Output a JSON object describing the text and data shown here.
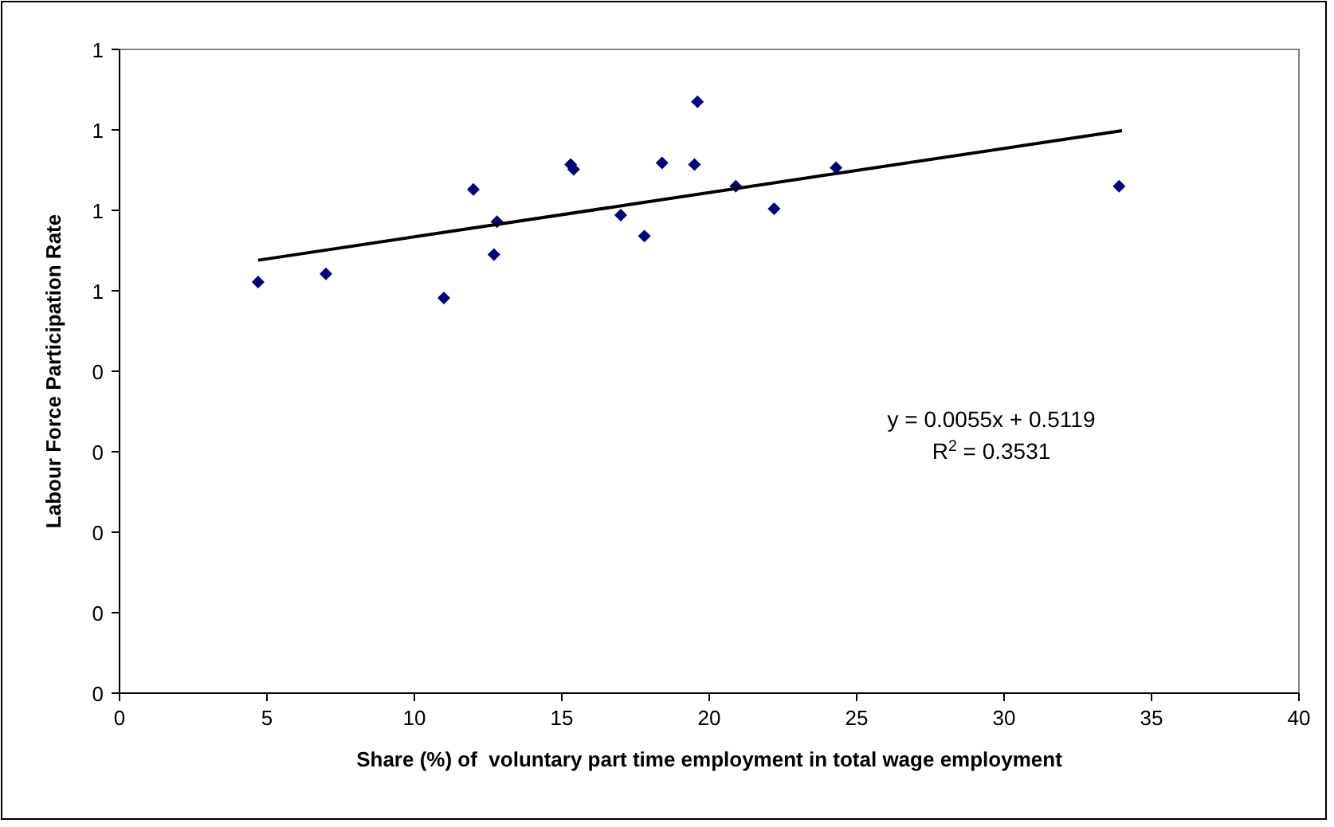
{
  "chart_data": {
    "type": "scatter",
    "xlabel": "Share (%) of  voluntary part time employment in total wage employment",
    "ylabel": "Labour Force Participation Rate",
    "xlim": [
      0,
      40
    ],
    "xticks": [
      0,
      5,
      10,
      15,
      20,
      25,
      30,
      35,
      40
    ],
    "ylim": [
      0,
      0.8
    ],
    "yticks": [
      0,
      {
        "value": 0.1,
        "label": "0"
      },
      {
        "value": 0.2,
        "label": "0"
      },
      {
        "value": 0.3,
        "label": "0"
      },
      {
        "value": 0.4,
        "label": "0"
      },
      {
        "value": 0.5,
        "label": "1"
      },
      {
        "value": 0.6,
        "label": "1"
      },
      {
        "value": 0.7,
        "label": "1"
      },
      {
        "value": 0.8,
        "label": "1"
      }
    ],
    "grid": false,
    "marker": "diamond",
    "annotations": [
      "y = 0.0055x + 0.5119",
      "R$^{2}$ = 0.3531"
    ],
    "series": [
      {
        "color": "#000080",
        "x": [
          4.7,
          7.0,
          11.0,
          12.0,
          12.7,
          12.8,
          15.3,
          15.4,
          17.0,
          17.8,
          18.4,
          19.6,
          19.5,
          20.9,
          22.2,
          24.3,
          33.9
        ],
        "values": [
          0.511,
          0.521,
          0.491,
          0.626,
          0.545,
          0.586,
          0.657,
          0.651,
          0.594,
          0.568,
          0.659,
          0.735,
          0.657,
          0.63,
          0.602,
          0.653,
          0.63
        ]
      },
      {
        "type": "line",
        "color": "#000000",
        "line_style": "solid",
        "marker": "none",
        "x": [
          4.7,
          34
        ],
        "values": [
          0.538,
          0.699
        ]
      }
    ]
  }
}
